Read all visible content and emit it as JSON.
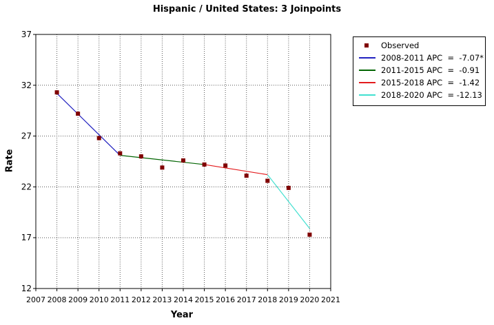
{
  "chart_data": {
    "type": "line",
    "title": "Hispanic / United States: 3 Joinpoints",
    "xlabel": "Year",
    "ylabel": "Rate",
    "xlim": [
      2007,
      2021
    ],
    "ylim": [
      12,
      37
    ],
    "x_ticks": [
      "2007",
      "2008",
      "2009",
      "2010",
      "2011",
      "2012",
      "2013",
      "2014",
      "2015",
      "2016",
      "2017",
      "2018",
      "2019",
      "2020",
      "2021"
    ],
    "y_ticks": [
      "12",
      "17",
      "22",
      "27",
      "32",
      "37"
    ],
    "grid": true,
    "legend_position": "right",
    "colors": {
      "observed": "#800000",
      "seg1": "#1f1fbf",
      "seg2": "#006400",
      "seg3": "#e31a1c",
      "seg4": "#40e0d0"
    },
    "observed": {
      "name": "Observed",
      "x": [
        2008,
        2009,
        2010,
        2011,
        2012,
        2013,
        2014,
        2015,
        2016,
        2017,
        2018,
        2019,
        2020
      ],
      "y": [
        31.3,
        29.2,
        26.8,
        25.3,
        25.0,
        23.9,
        24.6,
        24.2,
        24.1,
        23.1,
        22.6,
        21.9,
        17.3
      ]
    },
    "series": [
      {
        "name": "2008-2011 APC  =  -7.07*",
        "x": [
          2008,
          2011
        ],
        "y": [
          31.2,
          25.1
        ]
      },
      {
        "name": "2011-2015 APC  =  -0.91",
        "x": [
          2011,
          2015
        ],
        "y": [
          25.1,
          24.2
        ]
      },
      {
        "name": "2015-2018 APC  =  -1.42",
        "x": [
          2015,
          2018
        ],
        "y": [
          24.2,
          23.2
        ]
      },
      {
        "name": "2018-2020 APC  = -12.13",
        "x": [
          2018,
          2020
        ],
        "y": [
          23.2,
          17.9
        ]
      }
    ]
  }
}
